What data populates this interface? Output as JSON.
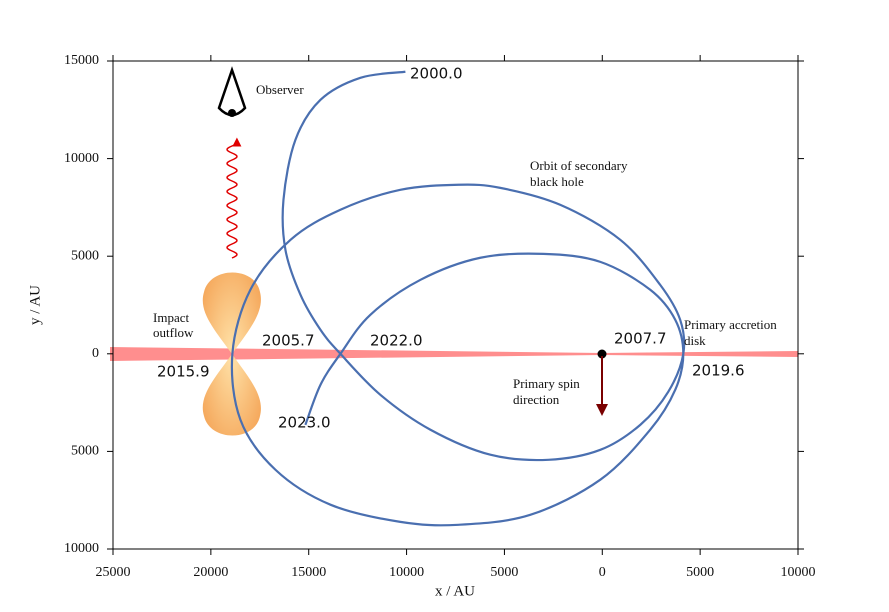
{
  "chart_data": {
    "type": "line",
    "xlabel": "x / AU",
    "ylabel": "y / AU",
    "xlim": [
      25000,
      -10000
    ],
    "ylim": [
      -10000,
      15000
    ],
    "xticks": [
      25000,
      20000,
      15000,
      10000,
      5000,
      0,
      {
        "value": -5000,
        "label": "5000"
      },
      {
        "value": -10000,
        "label": "10000"
      }
    ],
    "yticks": [
      {
        "value": -10000,
        "label": "10000"
      },
      {
        "value": -5000,
        "label": "5000"
      },
      0,
      5000,
      10000,
      15000
    ],
    "series": [
      {
        "color": "#4a6fb0",
        "x": [
          10060,
          12360,
          14400,
          15680,
          16290,
          16190,
          15420,
          14400,
          13380,
          11340,
          8780,
          5720,
          2760,
          100,
          -1940,
          -3370,
          -4140,
          -3980,
          -2960,
          -920,
          2140,
          5210,
          7350,
          10320,
          13380,
          15930,
          17980,
          18900,
          18490,
          16700,
          13890,
          10320,
          7350,
          3680,
          100,
          -2450,
          -3730,
          -4140,
          -3730,
          -2450,
          100,
          3010,
          6230,
          9290,
          11850,
          13380,
          14400,
          15170
        ],
        "y": [
          14450,
          14140,
          13010,
          10960,
          7890,
          5330,
          3020,
          1230,
          0,
          -2100,
          -3890,
          -5170,
          -5430,
          -4920,
          -3640,
          -1950,
          0,
          1740,
          3530,
          5840,
          7630,
          8500,
          8660,
          8400,
          7380,
          5840,
          3280,
          0,
          -3380,
          -5940,
          -7730,
          -8610,
          -8760,
          -8250,
          -6450,
          -3890,
          -1840,
          0,
          1740,
          3280,
          4710,
          5120,
          4920,
          3790,
          2000,
          0,
          -1590,
          -3640
        ]
      }
    ],
    "annotations": [
      "2000.0",
      "2005.7",
      "2015.9",
      "2022.0",
      "2023.0",
      "2007.7",
      "2019.6",
      "Observer",
      "Orbit of secondary",
      "black hole",
      "Impact",
      "outflow",
      "Primary accretion",
      "disk",
      "Primary spin",
      "direction"
    ]
  }
}
